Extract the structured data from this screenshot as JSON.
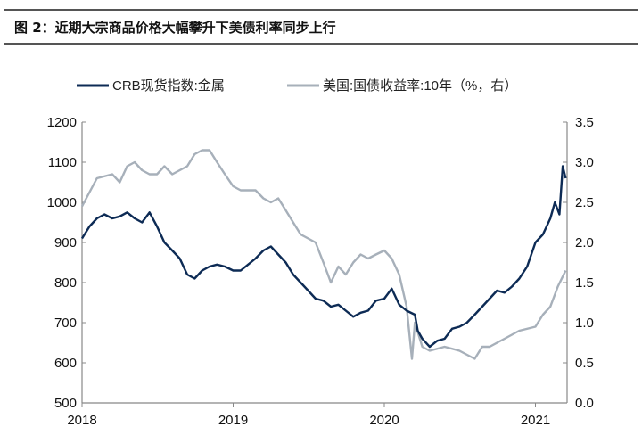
{
  "title": "图 2：近期大宗商品价格大幅攀升下美债利率同步上行",
  "chart_data": {
    "type": "line",
    "title": "",
    "xlabel": "",
    "ylabel": "",
    "x_ticks": [
      "2018",
      "2019",
      "2020",
      "2021"
    ],
    "y_left": {
      "lim": [
        500,
        1200
      ],
      "ticks": [
        "500",
        "600",
        "700",
        "800",
        "900",
        "1000",
        "1100",
        "1200"
      ]
    },
    "y_right": {
      "lim": [
        0,
        3.5
      ],
      "ticks": [
        "0.0",
        "0.5",
        "1.0",
        "1.5",
        "2.0",
        "2.5",
        "3.0",
        "3.5"
      ]
    },
    "grid": false,
    "legend_position": "top",
    "series": [
      {
        "name": "CRB现货指数:金属",
        "axis": "left",
        "color": "#0d2b55",
        "points": [
          [
            "2018-01-01",
            910
          ],
          [
            "2018-01-19",
            940
          ],
          [
            "2018-02-06",
            960
          ],
          [
            "2018-02-24",
            970
          ],
          [
            "2018-03-15",
            960
          ],
          [
            "2018-04-02",
            965
          ],
          [
            "2018-04-20",
            975
          ],
          [
            "2018-05-08",
            960
          ],
          [
            "2018-05-26",
            950
          ],
          [
            "2018-06-13",
            975
          ],
          [
            "2018-07-01",
            940
          ],
          [
            "2018-07-19",
            900
          ],
          [
            "2018-08-07",
            880
          ],
          [
            "2018-08-25",
            860
          ],
          [
            "2018-09-12",
            820
          ],
          [
            "2018-09-30",
            810
          ],
          [
            "2018-10-18",
            830
          ],
          [
            "2018-11-05",
            840
          ],
          [
            "2018-11-23",
            845
          ],
          [
            "2018-12-12",
            840
          ],
          [
            "2019-01-01",
            830
          ],
          [
            "2019-01-19",
            830
          ],
          [
            "2019-02-06",
            845
          ],
          [
            "2019-02-24",
            860
          ],
          [
            "2019-03-15",
            880
          ],
          [
            "2019-04-02",
            890
          ],
          [
            "2019-04-20",
            870
          ],
          [
            "2019-05-08",
            850
          ],
          [
            "2019-05-26",
            820
          ],
          [
            "2019-06-13",
            800
          ],
          [
            "2019-07-01",
            780
          ],
          [
            "2019-07-19",
            760
          ],
          [
            "2019-08-07",
            755
          ],
          [
            "2019-08-25",
            740
          ],
          [
            "2019-09-12",
            745
          ],
          [
            "2019-09-30",
            730
          ],
          [
            "2019-10-18",
            715
          ],
          [
            "2019-11-05",
            725
          ],
          [
            "2019-11-23",
            730
          ],
          [
            "2019-12-12",
            755
          ],
          [
            "2020-01-01",
            760
          ],
          [
            "2020-01-19",
            785
          ],
          [
            "2020-02-06",
            745
          ],
          [
            "2020-02-24",
            730
          ],
          [
            "2020-03-15",
            720
          ],
          [
            "2020-03-22",
            680
          ],
          [
            "2020-04-02",
            660
          ],
          [
            "2020-04-20",
            640
          ],
          [
            "2020-05-08",
            655
          ],
          [
            "2020-05-26",
            660
          ],
          [
            "2020-06-13",
            685
          ],
          [
            "2020-07-01",
            690
          ],
          [
            "2020-07-19",
            700
          ],
          [
            "2020-08-07",
            720
          ],
          [
            "2020-08-25",
            740
          ],
          [
            "2020-09-12",
            760
          ],
          [
            "2020-09-30",
            780
          ],
          [
            "2020-10-18",
            775
          ],
          [
            "2020-11-05",
            790
          ],
          [
            "2020-11-23",
            810
          ],
          [
            "2020-12-12",
            840
          ],
          [
            "2021-01-01",
            900
          ],
          [
            "2021-01-19",
            920
          ],
          [
            "2021-02-06",
            960
          ],
          [
            "2021-02-17",
            1000
          ],
          [
            "2021-02-28",
            970
          ],
          [
            "2021-03-08",
            1090
          ],
          [
            "2021-03-15",
            1060
          ]
        ]
      },
      {
        "name": "美国:国债收益率:10年（%，右）",
        "axis": "right",
        "color": "#a7b0ba",
        "points": [
          [
            "2018-01-01",
            2.45
          ],
          [
            "2018-02-06",
            2.8
          ],
          [
            "2018-03-15",
            2.85
          ],
          [
            "2018-04-02",
            2.75
          ],
          [
            "2018-04-20",
            2.95
          ],
          [
            "2018-05-08",
            3.0
          ],
          [
            "2018-05-26",
            2.9
          ],
          [
            "2018-06-13",
            2.85
          ],
          [
            "2018-07-01",
            2.85
          ],
          [
            "2018-07-19",
            2.95
          ],
          [
            "2018-08-07",
            2.85
          ],
          [
            "2018-09-12",
            2.95
          ],
          [
            "2018-09-30",
            3.1
          ],
          [
            "2018-10-18",
            3.15
          ],
          [
            "2018-11-05",
            3.15
          ],
          [
            "2018-11-23",
            3.0
          ],
          [
            "2018-12-12",
            2.85
          ],
          [
            "2019-01-01",
            2.7
          ],
          [
            "2019-01-19",
            2.65
          ],
          [
            "2019-02-06",
            2.65
          ],
          [
            "2019-02-24",
            2.65
          ],
          [
            "2019-03-15",
            2.55
          ],
          [
            "2019-04-02",
            2.5
          ],
          [
            "2019-04-20",
            2.55
          ],
          [
            "2019-05-08",
            2.4
          ],
          [
            "2019-05-26",
            2.25
          ],
          [
            "2019-06-13",
            2.1
          ],
          [
            "2019-07-01",
            2.05
          ],
          [
            "2019-07-19",
            2.0
          ],
          [
            "2019-08-07",
            1.75
          ],
          [
            "2019-08-25",
            1.5
          ],
          [
            "2019-09-12",
            1.7
          ],
          [
            "2019-09-30",
            1.6
          ],
          [
            "2019-10-18",
            1.75
          ],
          [
            "2019-11-05",
            1.85
          ],
          [
            "2019-11-23",
            1.8
          ],
          [
            "2019-12-12",
            1.85
          ],
          [
            "2020-01-01",
            1.9
          ],
          [
            "2020-01-19",
            1.8
          ],
          [
            "2020-02-06",
            1.6
          ],
          [
            "2020-02-24",
            1.2
          ],
          [
            "2020-03-08",
            0.55
          ],
          [
            "2020-03-15",
            1.0
          ],
          [
            "2020-04-02",
            0.7
          ],
          [
            "2020-04-20",
            0.65
          ],
          [
            "2020-05-26",
            0.7
          ],
          [
            "2020-07-01",
            0.65
          ],
          [
            "2020-08-07",
            0.55
          ],
          [
            "2020-08-25",
            0.7
          ],
          [
            "2020-09-12",
            0.7
          ],
          [
            "2020-10-18",
            0.8
          ],
          [
            "2020-11-23",
            0.9
          ],
          [
            "2021-01-01",
            0.95
          ],
          [
            "2021-01-19",
            1.1
          ],
          [
            "2021-02-06",
            1.2
          ],
          [
            "2021-02-24",
            1.45
          ],
          [
            "2021-03-15",
            1.65
          ]
        ]
      }
    ]
  }
}
